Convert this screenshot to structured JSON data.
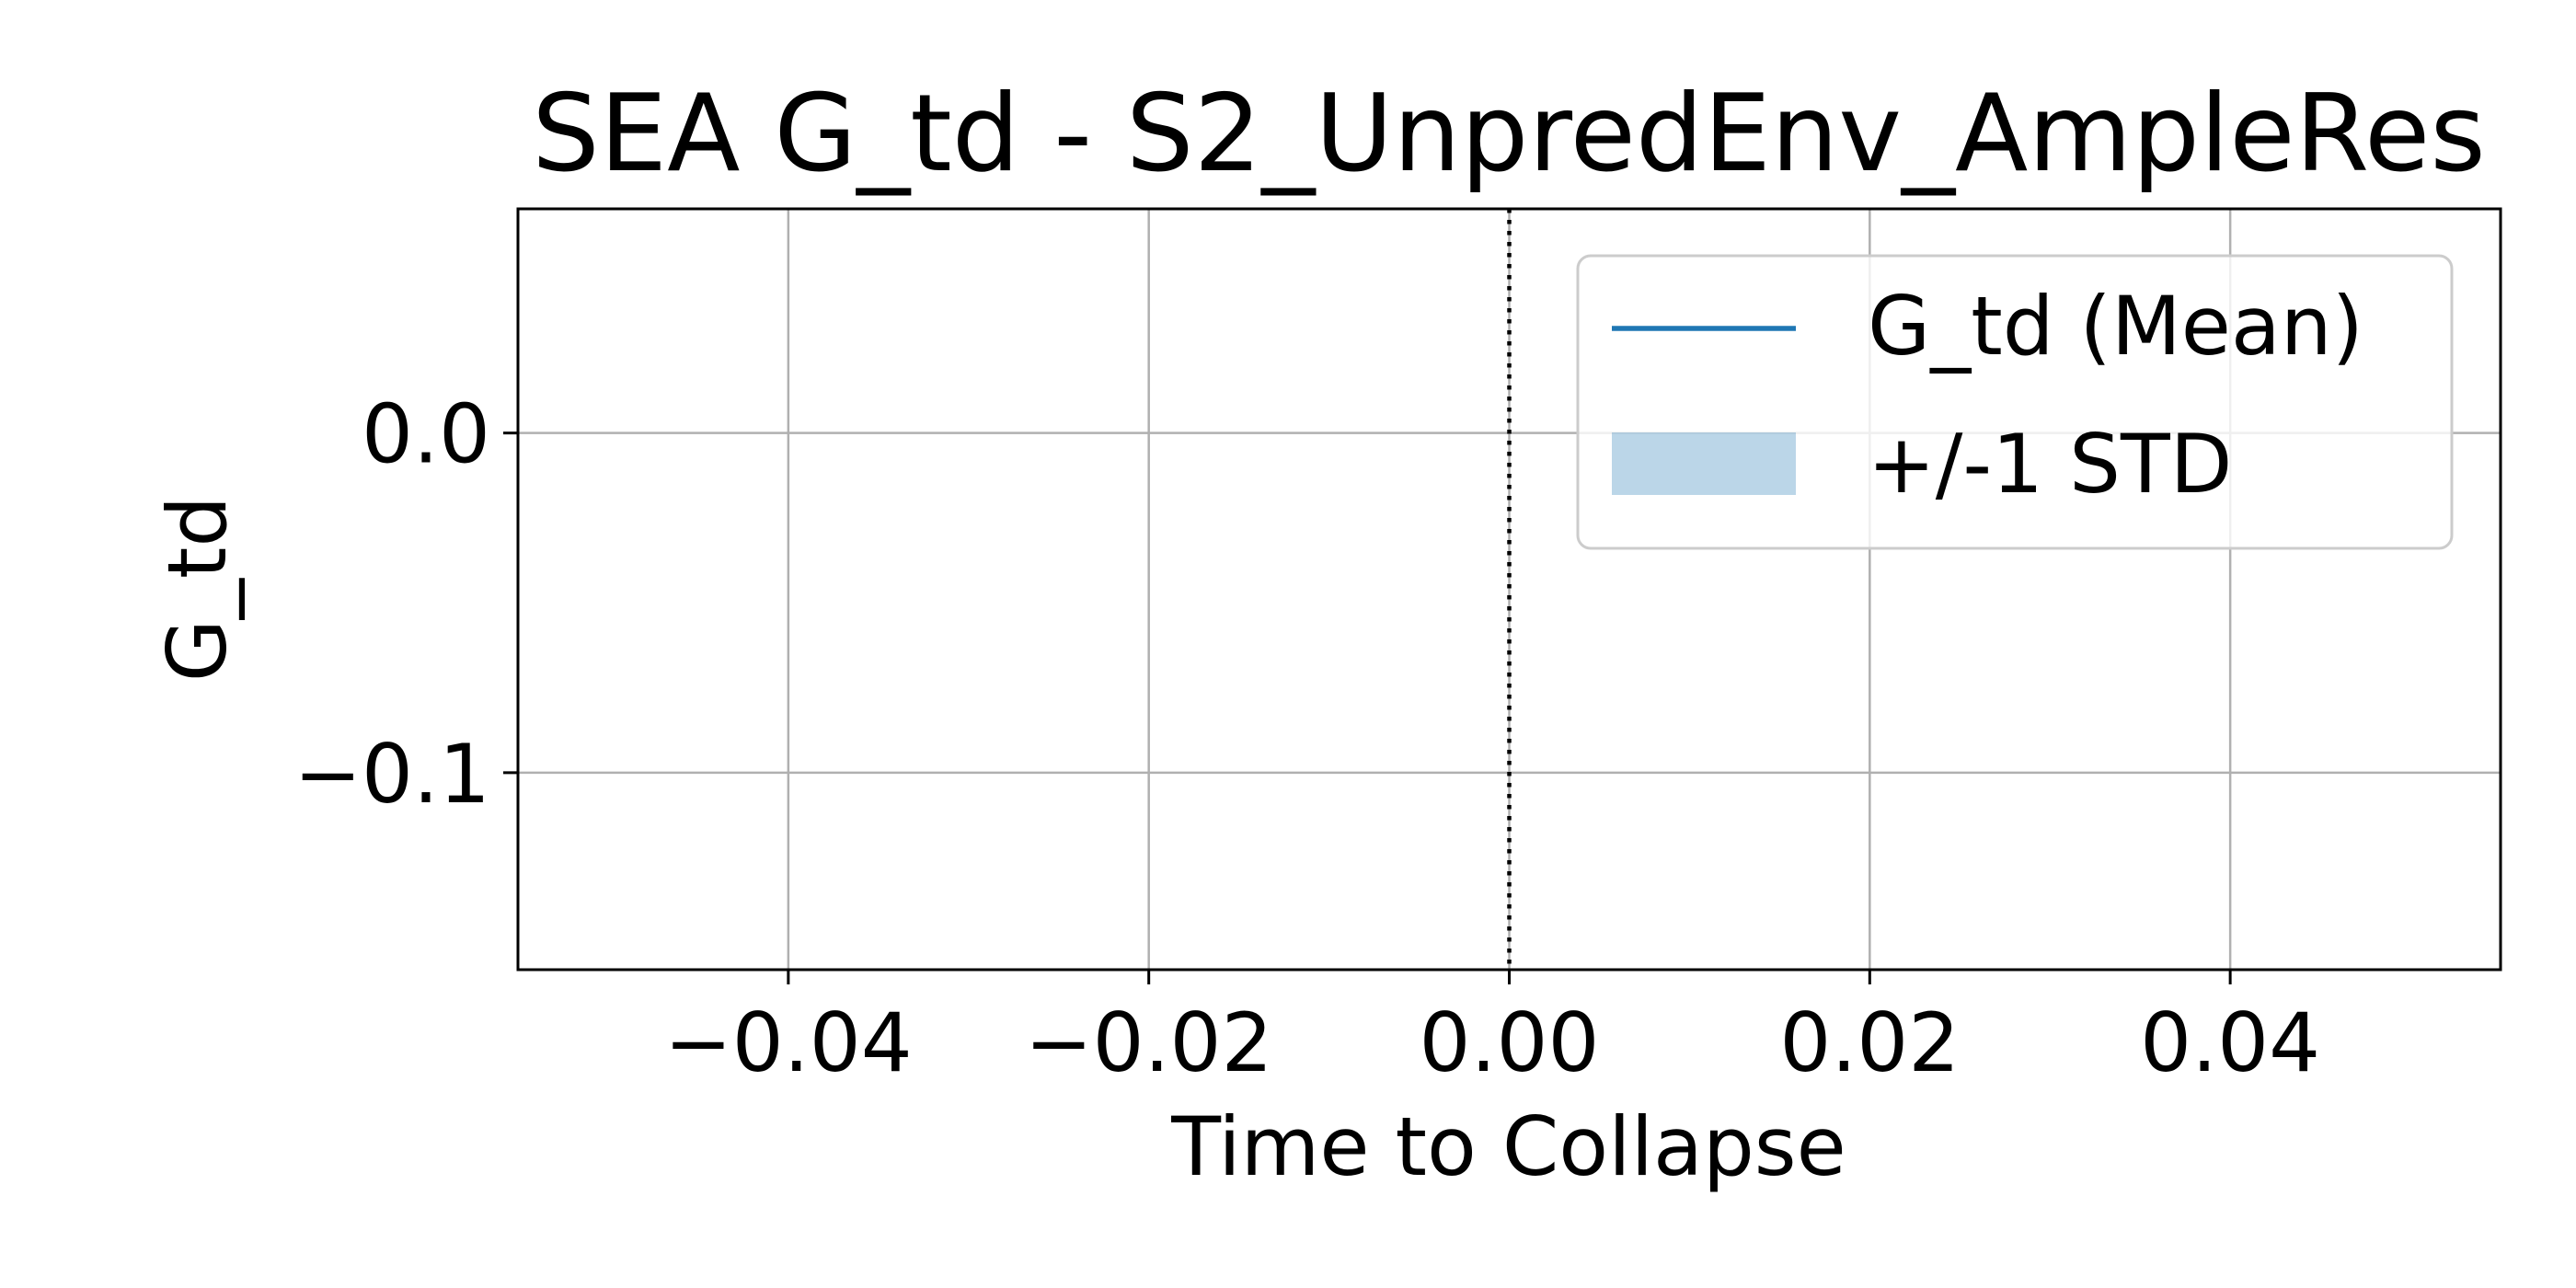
{
  "chart_data": {
    "type": "line",
    "title": "SEA G_td - S2_UnpredEnv_AmpleRes",
    "xlabel": "Time to Collapse",
    "ylabel": "G_td",
    "xlim": [
      -0.055,
      0.055
    ],
    "ylim": [
      -0.158,
      0.066
    ],
    "x_ticks": [
      -0.04,
      -0.02,
      0.0,
      0.02,
      0.04
    ],
    "x_tick_labels": [
      "−0.04",
      "−0.02",
      "0.00",
      "0.02",
      "0.04"
    ],
    "y_ticks": [
      0.0,
      -0.1
    ],
    "y_tick_labels": [
      "0.0",
      "−0.1"
    ],
    "grid": true,
    "vline": {
      "x": 0.0,
      "style": "dotted"
    },
    "series": [
      {
        "name": "G_td (Mean)",
        "kind": "line",
        "color": "#1f77b4",
        "x": [],
        "values": []
      },
      {
        "name": "+/-1 STD",
        "kind": "band",
        "color": "#1f77b4",
        "x": [],
        "lower": [],
        "upper": []
      }
    ],
    "legend": {
      "position": "top-right",
      "entries": [
        {
          "label": "G_td (Mean)",
          "kind": "line",
          "color": "#1f77b4"
        },
        {
          "label": "+/-1 STD",
          "kind": "patch",
          "color": "#1f77b4"
        }
      ]
    }
  }
}
